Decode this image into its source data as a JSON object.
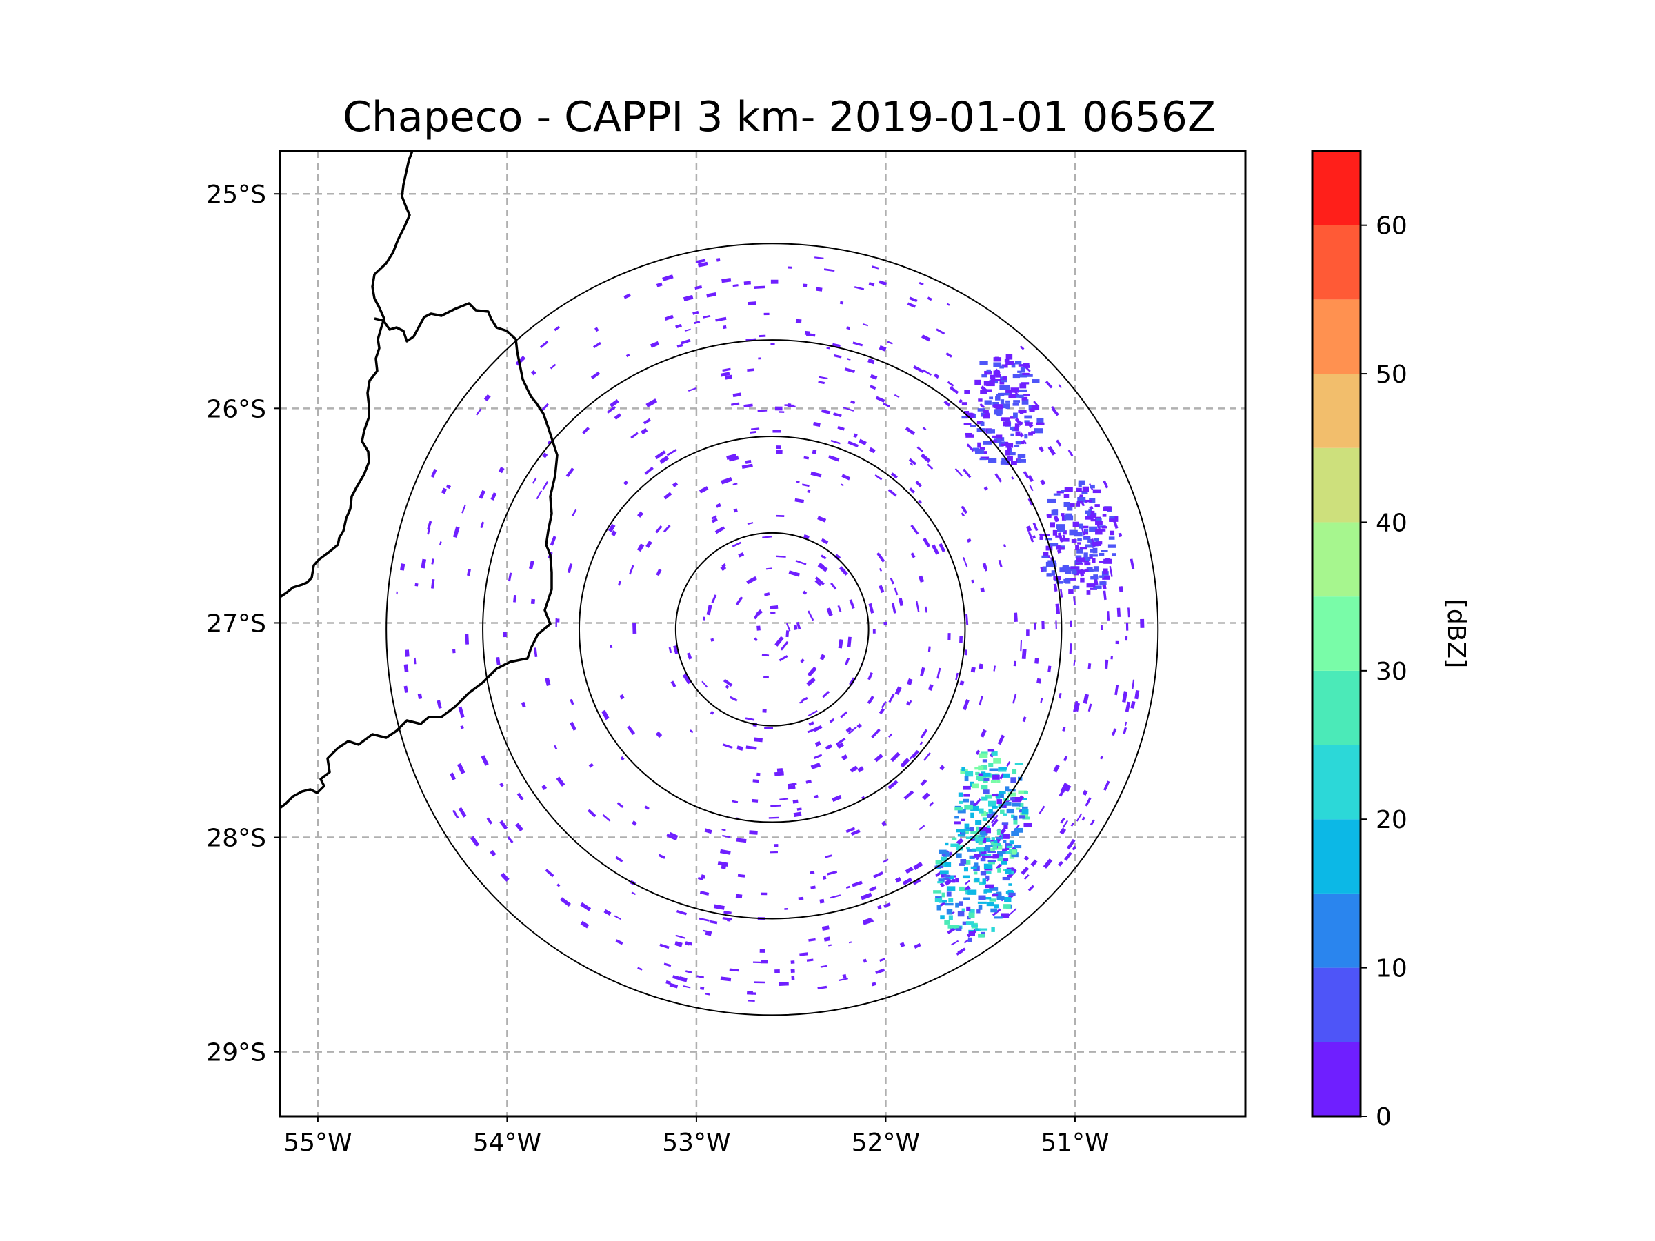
{
  "chart_data": {
    "type": "heatmap",
    "title": "Chapeco - CAPPI 3 km- 2019-01-01 0656Z",
    "radar_site": "Chapeco",
    "product": "CAPPI 3 km",
    "datetime": "2019-01-01 0656Z",
    "lon_range": [
      -55.2,
      -50.1
    ],
    "lat_range": [
      -29.3,
      -24.8
    ],
    "radar_center": {
      "lon": -52.6,
      "lat": -27.03
    },
    "range_rings_km": [
      50,
      100,
      150,
      200
    ],
    "x_ticks": [
      {
        "value": -55,
        "label": "55°W"
      },
      {
        "value": -54,
        "label": "54°W"
      },
      {
        "value": -53,
        "label": "53°W"
      },
      {
        "value": -52,
        "label": "52°W"
      },
      {
        "value": -51,
        "label": "51°W"
      }
    ],
    "y_ticks": [
      {
        "value": -25,
        "label": "25°S"
      },
      {
        "value": -26,
        "label": "26°S"
      },
      {
        "value": -27,
        "label": "27°S"
      },
      {
        "value": -28,
        "label": "28°S"
      },
      {
        "value": -29,
        "label": "29°S"
      }
    ],
    "gridlines": true,
    "colorbar": {
      "label": "[dBZ]",
      "range": [
        0,
        65
      ],
      "levels": [
        0,
        5,
        10,
        15,
        20,
        25,
        30,
        35,
        40,
        45,
        50,
        55,
        60,
        65
      ],
      "colors": [
        "#6f1fff",
        "#4e55f8",
        "#2a85ee",
        "#0cb8e6",
        "#2cd8d8",
        "#4beab8",
        "#79fca8",
        "#a6f68e",
        "#cde07c",
        "#f2be6c",
        "#ff9150",
        "#ff5a36",
        "#ff1f1a"
      ],
      "tick_labels": [
        "0",
        "10",
        "20",
        "30",
        "40",
        "50",
        "60"
      ]
    },
    "echo_clusters": [
      {
        "lon": -51.45,
        "lat": -27.85,
        "max_dbz": 30,
        "description": "strongest cells SE of radar"
      },
      {
        "lon": -51.55,
        "lat": -28.2,
        "max_dbz": 25,
        "description": "southern cell"
      },
      {
        "lon": -51.0,
        "lat": -26.6,
        "max_dbz": 5,
        "description": "NE band"
      },
      {
        "lon": -51.4,
        "lat": -26.0,
        "max_dbz": 5,
        "description": "N-NE scattered echoes"
      }
    ]
  }
}
